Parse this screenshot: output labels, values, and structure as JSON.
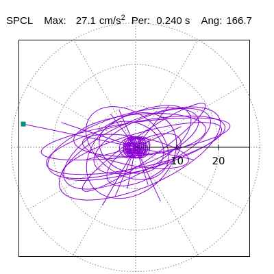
{
  "header": {
    "component": "SPCL",
    "max_label": "Max:",
    "max_value": "27.1",
    "max_unit": "cm/s",
    "max_unit_exp": "2",
    "per_label": "Per:",
    "per_value": "0.240 s",
    "ang_label": "Ang:",
    "ang_value": "166.7"
  },
  "colors": {
    "trace": "#8a00d4",
    "marker": "#008f7a",
    "grid": "#808080",
    "axis": "#000000"
  },
  "chart_data": {
    "type": "scatter",
    "title": "SPCL",
    "grid": true,
    "polar_grid": {
      "rings": [
        10,
        20,
        30
      ],
      "spoke_degrees": [
        0,
        30,
        60,
        90,
        120,
        150,
        180,
        210,
        240,
        270,
        300,
        330
      ]
    },
    "x_ticks": [
      "10",
      "20"
    ],
    "x_tick_values": [
      10,
      20
    ],
    "xlim": [
      -28,
      28
    ],
    "ylim": [
      -26,
      26
    ],
    "peak_marker": {
      "x": -27.1,
      "y": 5.6,
      "label": "Max: 27.1 cm/s2"
    },
    "orbit_loops": [
      {
        "rx": 22,
        "ry": 5.5,
        "rot": -12,
        "cx": 0,
        "cy": 0.5
      },
      {
        "rx": 20,
        "ry": 4.5,
        "rot": -16,
        "cx": 1.5,
        "cy": -1
      },
      {
        "rx": 17,
        "ry": 7,
        "rot": -28,
        "cx": -2,
        "cy": 0
      },
      {
        "rx": 15,
        "ry": 6,
        "rot": -22,
        "cx": 4,
        "cy": 1.5
      },
      {
        "rx": 23,
        "ry": 4,
        "rot": -8,
        "cx": 0,
        "cy": 2
      },
      {
        "rx": 12,
        "ry": 9,
        "rot": -40,
        "cx": -1,
        "cy": -2
      },
      {
        "rx": 19,
        "ry": 6.5,
        "rot": -18,
        "cx": -3,
        "cy": 1
      },
      {
        "rx": 10,
        "ry": 4.5,
        "rot": -30,
        "cx": 2,
        "cy": -3
      },
      {
        "rx": 16,
        "ry": 5,
        "rot": -5,
        "cx": 1,
        "cy": 3
      },
      {
        "rx": 21,
        "ry": 8,
        "rot": -24,
        "cx": 1,
        "cy": -1.5
      },
      {
        "rx": 8,
        "ry": 6,
        "rot": 20,
        "cx": -1,
        "cy": 0
      },
      {
        "rx": 13,
        "ry": 3.5,
        "rot": 10,
        "cx": 0,
        "cy": -1
      },
      {
        "rx": 18,
        "ry": 3,
        "rot": -35,
        "cx": 2,
        "cy": 0
      },
      {
        "rx": 11,
        "ry": 7.5,
        "rot": 35,
        "cx": -2,
        "cy": 1
      }
    ],
    "spikes": [
      [
        -5,
        -12
      ],
      [
        -8,
        -14
      ],
      [
        -2,
        -10
      ],
      [
        3,
        -9
      ],
      [
        8,
        10
      ],
      [
        -4,
        9
      ],
      [
        14,
        -3
      ],
      [
        -18,
        6
      ],
      [
        6,
        -13
      ],
      [
        -12,
        -3
      ],
      [
        11,
        5
      ],
      [
        -6,
        8
      ]
    ],
    "marker_line": {
      "from": [
        -27.1,
        5.6
      ],
      "to": [
        0,
        0
      ]
    }
  }
}
